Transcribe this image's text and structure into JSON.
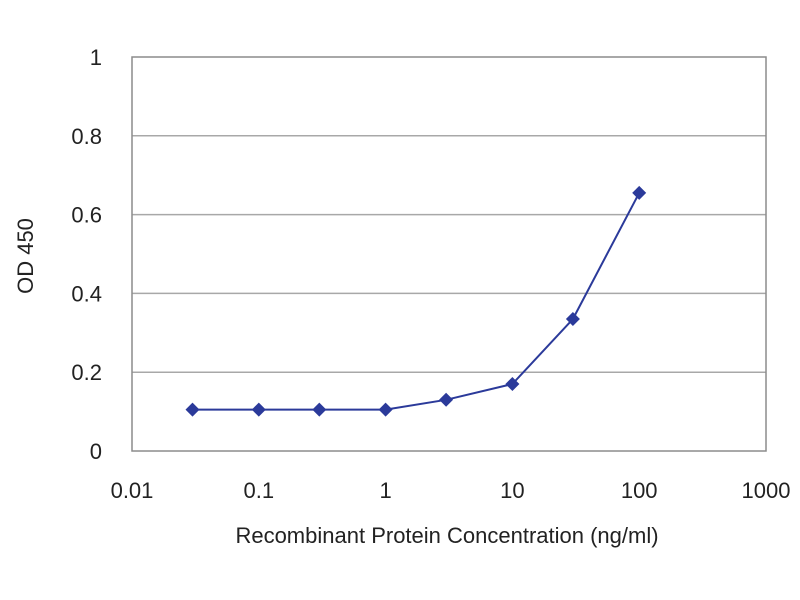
{
  "chart_data": {
    "type": "line",
    "title": "",
    "xlabel": "Recombinant Protein Concentration (ng/ml)",
    "ylabel": "OD 450",
    "xscale": "log",
    "xlim": [
      0.01,
      1000
    ],
    "ylim": [
      0,
      1
    ],
    "xticks": [
      {
        "value": 0.01,
        "label": "0.01"
      },
      {
        "value": 0.1,
        "label": "0.1"
      },
      {
        "value": 1,
        "label": "1"
      },
      {
        "value": 10,
        "label": "10"
      },
      {
        "value": 100,
        "label": "100"
      },
      {
        "value": 1000,
        "label": "1000"
      }
    ],
    "yticks": [
      {
        "value": 0,
        "label": "0"
      },
      {
        "value": 0.2,
        "label": "0.2"
      },
      {
        "value": 0.4,
        "label": "0.4"
      },
      {
        "value": 0.6,
        "label": "0.6"
      },
      {
        "value": 0.8,
        "label": "0.8"
      },
      {
        "value": 1,
        "label": "1"
      }
    ],
    "grid": "horizontal",
    "legend": "none",
    "series": [
      {
        "x": [
          0.03,
          0.1,
          0.3,
          1,
          3,
          10,
          30,
          100
        ],
        "y": [
          0.105,
          0.105,
          0.105,
          0.105,
          0.13,
          0.17,
          0.335,
          0.655
        ]
      }
    ]
  },
  "colors": {
    "series": "#2b3a9a",
    "gridline": "#a8a8a8",
    "plot_border": "#8c8c8c"
  }
}
